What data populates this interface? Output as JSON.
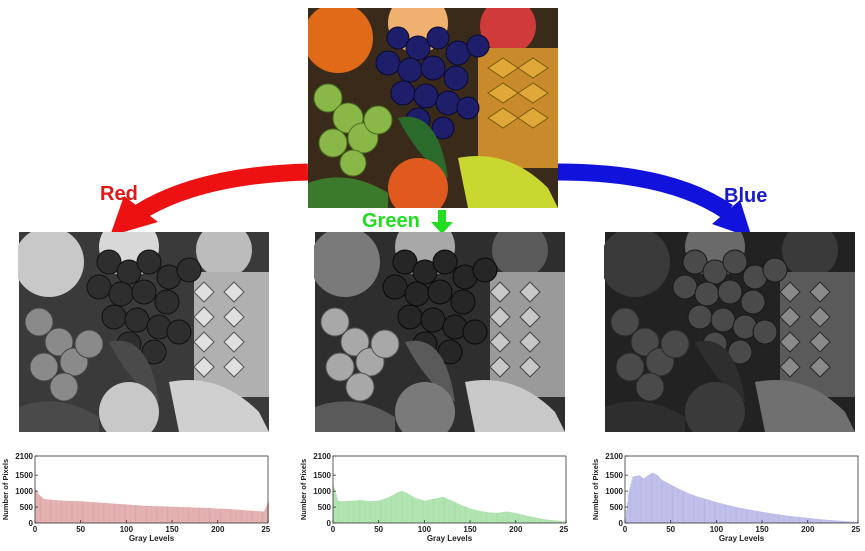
{
  "labels": {
    "red": "Red",
    "green": "Green",
    "blue": "Blue"
  },
  "colors": {
    "red_arrow": "#ee1111",
    "green_arrow": "#22dd22",
    "blue_arrow": "#1212dd",
    "red_fill": "#e0a8a8",
    "green_fill": "#a8e0a8",
    "blue_fill": "#b8b8e8"
  },
  "chart_data": [
    {
      "type": "bar",
      "channel": "red",
      "xlabel": "Gray Levels",
      "ylabel": "Number of Pixels",
      "xlim": [
        0,
        255
      ],
      "ylim": [
        0,
        2100
      ],
      "xticks": [
        0,
        50,
        100,
        150,
        200,
        255
      ],
      "yticks": [
        0,
        500,
        1000,
        1500,
        2100
      ],
      "x": [
        0,
        5,
        10,
        20,
        30,
        40,
        50,
        60,
        70,
        80,
        90,
        100,
        110,
        120,
        130,
        140,
        150,
        160,
        170,
        180,
        190,
        200,
        210,
        220,
        230,
        240,
        250,
        255
      ],
      "values": [
        1050,
        850,
        750,
        720,
        700,
        690,
        680,
        660,
        640,
        620,
        600,
        580,
        560,
        540,
        530,
        520,
        510,
        500,
        490,
        480,
        470,
        450,
        440,
        420,
        400,
        380,
        360,
        650
      ]
    },
    {
      "type": "bar",
      "channel": "green",
      "xlabel": "Gray Levels",
      "ylabel": "Number of Pixels",
      "xlim": [
        0,
        255
      ],
      "ylim": [
        0,
        2100
      ],
      "xticks": [
        0,
        50,
        100,
        150,
        200,
        255
      ],
      "yticks": [
        0,
        500,
        1000,
        1500,
        2100
      ],
      "x": [
        0,
        5,
        10,
        20,
        30,
        40,
        50,
        60,
        70,
        75,
        80,
        90,
        100,
        110,
        120,
        130,
        140,
        150,
        160,
        170,
        180,
        190,
        200,
        210,
        220,
        230,
        240,
        250,
        255
      ],
      "values": [
        1200,
        700,
        680,
        700,
        720,
        680,
        700,
        800,
        960,
        1000,
        950,
        780,
        700,
        760,
        820,
        700,
        560,
        450,
        380,
        330,
        320,
        360,
        310,
        240,
        180,
        120,
        90,
        60,
        50
      ]
    },
    {
      "type": "bar",
      "channel": "blue",
      "xlabel": "Gray Levels",
      "ylabel": "Number of Pixels",
      "xlim": [
        0,
        255
      ],
      "ylim": [
        0,
        2100
      ],
      "xticks": [
        0,
        50,
        100,
        150,
        200,
        255
      ],
      "yticks": [
        0,
        500,
        1000,
        1500,
        2100
      ],
      "x": [
        0,
        3,
        8,
        15,
        20,
        25,
        30,
        35,
        40,
        50,
        60,
        70,
        80,
        90,
        100,
        110,
        120,
        130,
        140,
        150,
        160,
        170,
        180,
        190,
        200,
        210,
        220,
        230,
        240,
        250,
        255
      ],
      "values": [
        150,
        900,
        1450,
        1500,
        1400,
        1500,
        1580,
        1500,
        1350,
        1200,
        1050,
        920,
        820,
        740,
        650,
        580,
        510,
        450,
        400,
        350,
        300,
        260,
        220,
        190,
        160,
        130,
        100,
        80,
        60,
        40,
        30
      ]
    }
  ]
}
